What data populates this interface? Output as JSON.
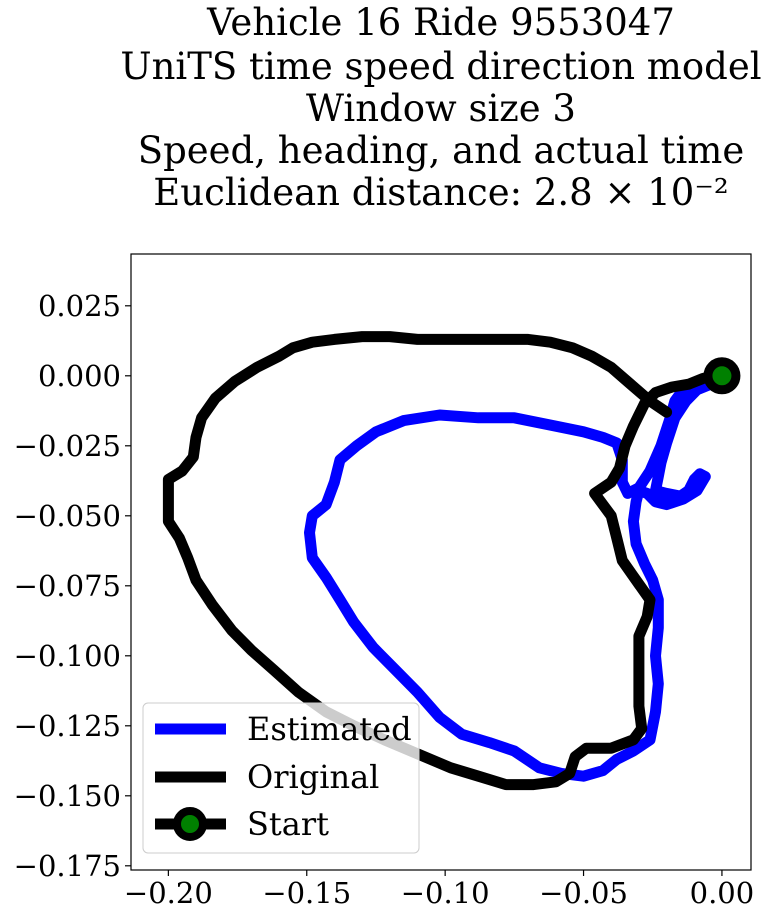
{
  "chart_data": {
    "type": "line",
    "title_lines": [
      "Vehicle 16 Ride 9553047",
      "UniTS time speed direction model",
      "Window size 3",
      "Speed, heading, and actual time",
      "Euclidean distance: 2.8 × 10⁻²"
    ],
    "xlabel": "",
    "ylabel": "",
    "xlim": [
      -0.2135,
      0.0105
    ],
    "ylim": [
      -0.1765,
      0.0435
    ],
    "xticks": [
      -0.2,
      -0.15,
      -0.1,
      -0.05,
      0.0
    ],
    "xtick_labels": [
      "−0.20",
      "−0.15",
      "−0.10",
      "−0.05",
      "0.00"
    ],
    "yticks": [
      0.025,
      0.0,
      -0.025,
      -0.05,
      -0.075,
      -0.1,
      -0.125,
      -0.15,
      -0.175
    ],
    "ytick_labels": [
      "0.025",
      "0.000",
      "−0.025",
      "−0.050",
      "−0.075",
      "−0.100",
      "−0.125",
      "−0.150",
      "−0.175"
    ],
    "grid": false,
    "legend_position": "lower-left",
    "series": [
      {
        "name": "Estimated",
        "color": "#0000ff",
        "points": [
          [
            -0.004,
            -0.003
          ],
          [
            -0.009,
            -0.005
          ],
          [
            -0.013,
            -0.009
          ],
          [
            -0.017,
            -0.015
          ],
          [
            -0.02,
            -0.024
          ],
          [
            -0.022,
            -0.031
          ],
          [
            -0.023,
            -0.036
          ],
          [
            -0.024,
            -0.041
          ],
          [
            -0.02,
            -0.042
          ],
          [
            -0.015,
            -0.043
          ],
          [
            -0.012,
            -0.041
          ],
          [
            -0.01,
            -0.037
          ],
          [
            -0.008,
            -0.035
          ],
          [
            -0.006,
            -0.036
          ],
          [
            -0.009,
            -0.041
          ],
          [
            -0.014,
            -0.044
          ],
          [
            -0.02,
            -0.046
          ],
          [
            -0.024,
            -0.045
          ],
          [
            -0.027,
            -0.042
          ],
          [
            -0.03,
            -0.041
          ],
          [
            -0.031,
            -0.045
          ],
          [
            -0.032,
            -0.052
          ],
          [
            -0.031,
            -0.06
          ],
          [
            -0.028,
            -0.067
          ],
          [
            -0.025,
            -0.073
          ],
          [
            -0.023,
            -0.08
          ],
          [
            -0.023,
            -0.09
          ],
          [
            -0.024,
            -0.1
          ],
          [
            -0.023,
            -0.11
          ],
          [
            -0.024,
            -0.12
          ],
          [
            -0.026,
            -0.13
          ],
          [
            -0.032,
            -0.134
          ],
          [
            -0.038,
            -0.137
          ],
          [
            -0.043,
            -0.141
          ],
          [
            -0.05,
            -0.143
          ],
          [
            -0.058,
            -0.142
          ],
          [
            -0.066,
            -0.14
          ],
          [
            -0.075,
            -0.134
          ],
          [
            -0.084,
            -0.131
          ],
          [
            -0.094,
            -0.128
          ],
          [
            -0.102,
            -0.122
          ],
          [
            -0.11,
            -0.113
          ],
          [
            -0.118,
            -0.105
          ],
          [
            -0.126,
            -0.097
          ],
          [
            -0.133,
            -0.088
          ],
          [
            -0.138,
            -0.08
          ],
          [
            -0.143,
            -0.072
          ],
          [
            -0.148,
            -0.065
          ],
          [
            -0.149,
            -0.056
          ],
          [
            -0.148,
            -0.05
          ],
          [
            -0.143,
            -0.046
          ],
          [
            -0.14,
            -0.038
          ],
          [
            -0.138,
            -0.03
          ],
          [
            -0.132,
            -0.025
          ],
          [
            -0.125,
            -0.02
          ],
          [
            -0.115,
            -0.016
          ],
          [
            -0.102,
            -0.014
          ],
          [
            -0.088,
            -0.015
          ],
          [
            -0.075,
            -0.015
          ],
          [
            -0.06,
            -0.018
          ],
          [
            -0.05,
            -0.02
          ],
          [
            -0.043,
            -0.022
          ],
          [
            -0.038,
            -0.024
          ],
          [
            -0.036,
            -0.03
          ],
          [
            -0.036,
            -0.038
          ],
          [
            -0.034,
            -0.042
          ],
          [
            -0.03,
            -0.04
          ],
          [
            -0.026,
            -0.034
          ],
          [
            -0.022,
            -0.025
          ],
          [
            -0.019,
            -0.016
          ],
          [
            -0.017,
            -0.009
          ],
          [
            -0.014,
            -0.005
          ],
          [
            -0.009,
            -0.004
          ],
          [
            -0.004,
            -0.002
          ],
          [
            0.0,
            0.0
          ]
        ]
      },
      {
        "name": "Original",
        "color": "#000000",
        "points": [
          [
            -0.02,
            -0.013
          ],
          [
            -0.026,
            -0.009
          ],
          [
            -0.033,
            -0.003
          ],
          [
            -0.04,
            0.003
          ],
          [
            -0.047,
            0.007
          ],
          [
            -0.054,
            0.01
          ],
          [
            -0.062,
            0.012
          ],
          [
            -0.07,
            0.013
          ],
          [
            -0.08,
            0.013
          ],
          [
            -0.09,
            0.013
          ],
          [
            -0.1,
            0.013
          ],
          [
            -0.11,
            0.013
          ],
          [
            -0.12,
            0.014
          ],
          [
            -0.13,
            0.014
          ],
          [
            -0.14,
            0.013
          ],
          [
            -0.148,
            0.012
          ],
          [
            -0.155,
            0.01
          ],
          [
            -0.16,
            0.007
          ],
          [
            -0.168,
            0.003
          ],
          [
            -0.176,
            -0.002
          ],
          [
            -0.183,
            -0.008
          ],
          [
            -0.188,
            -0.015
          ],
          [
            -0.19,
            -0.022
          ],
          [
            -0.191,
            -0.029
          ],
          [
            -0.195,
            -0.034
          ],
          [
            -0.2,
            -0.037
          ],
          [
            -0.2,
            -0.045
          ],
          [
            -0.2,
            -0.052
          ],
          [
            -0.196,
            -0.058
          ],
          [
            -0.193,
            -0.065
          ],
          [
            -0.19,
            -0.073
          ],
          [
            -0.184,
            -0.082
          ],
          [
            -0.177,
            -0.091
          ],
          [
            -0.17,
            -0.098
          ],
          [
            -0.162,
            -0.105
          ],
          [
            -0.153,
            -0.113
          ],
          [
            -0.143,
            -0.12
          ],
          [
            -0.133,
            -0.125
          ],
          [
            -0.122,
            -0.13
          ],
          [
            -0.11,
            -0.135
          ],
          [
            -0.098,
            -0.14
          ],
          [
            -0.088,
            -0.143
          ],
          [
            -0.078,
            -0.146
          ],
          [
            -0.068,
            -0.146
          ],
          [
            -0.06,
            -0.145
          ],
          [
            -0.055,
            -0.142
          ],
          [
            -0.053,
            -0.136
          ],
          [
            -0.049,
            -0.133
          ],
          [
            -0.04,
            -0.133
          ],
          [
            -0.032,
            -0.13
          ],
          [
            -0.029,
            -0.126
          ],
          [
            -0.03,
            -0.118
          ],
          [
            -0.03,
            -0.11
          ],
          [
            -0.03,
            -0.103
          ],
          [
            -0.03,
            -0.093
          ],
          [
            -0.027,
            -0.086
          ],
          [
            -0.026,
            -0.08
          ],
          [
            -0.031,
            -0.073
          ],
          [
            -0.036,
            -0.066
          ],
          [
            -0.038,
            -0.058
          ],
          [
            -0.04,
            -0.05
          ],
          [
            -0.043,
            -0.046
          ],
          [
            -0.046,
            -0.042
          ],
          [
            -0.04,
            -0.038
          ],
          [
            -0.037,
            -0.033
          ],
          [
            -0.035,
            -0.025
          ],
          [
            -0.032,
            -0.018
          ],
          [
            -0.028,
            -0.01
          ],
          [
            -0.024,
            -0.006
          ],
          [
            -0.018,
            -0.004
          ],
          [
            -0.012,
            -0.003
          ],
          [
            -0.007,
            -0.001
          ],
          [
            -0.003,
            0.0
          ],
          [
            0.0,
            0.0
          ]
        ]
      }
    ],
    "start_point": {
      "name": "Start",
      "x": 0.0,
      "y": 0.0,
      "fill": "#008000",
      "edge": "#000000"
    },
    "legend": {
      "entries": [
        "Estimated",
        "Original",
        "Start"
      ]
    }
  }
}
